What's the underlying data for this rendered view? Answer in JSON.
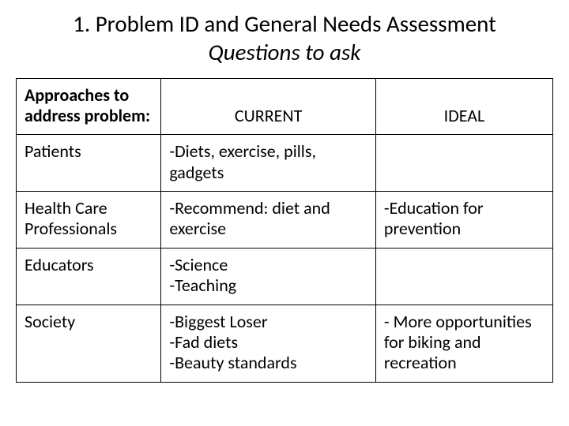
{
  "title": {
    "line1": "1. Problem ID and General Needs Assessment",
    "line2": "Questions to ask"
  },
  "table": {
    "header": {
      "approaches": "Approaches to address problem:",
      "current": "CURRENT",
      "ideal": "IDEAL"
    },
    "rows": [
      {
        "label": "Patients",
        "current": "-Diets, exercise, pills, gadgets",
        "ideal": ""
      },
      {
        "label": "Health Care Professionals",
        "current": "-Recommend: diet and exercise",
        "ideal": "-Education for prevention"
      },
      {
        "label": "Educators",
        "current": "-Science\n-Teaching",
        "ideal": ""
      },
      {
        "label": "Society",
        "current": "-Biggest Loser\n-Fad diets\n-Beauty standards",
        "ideal": "- More opportunities for biking and recreation"
      }
    ]
  }
}
